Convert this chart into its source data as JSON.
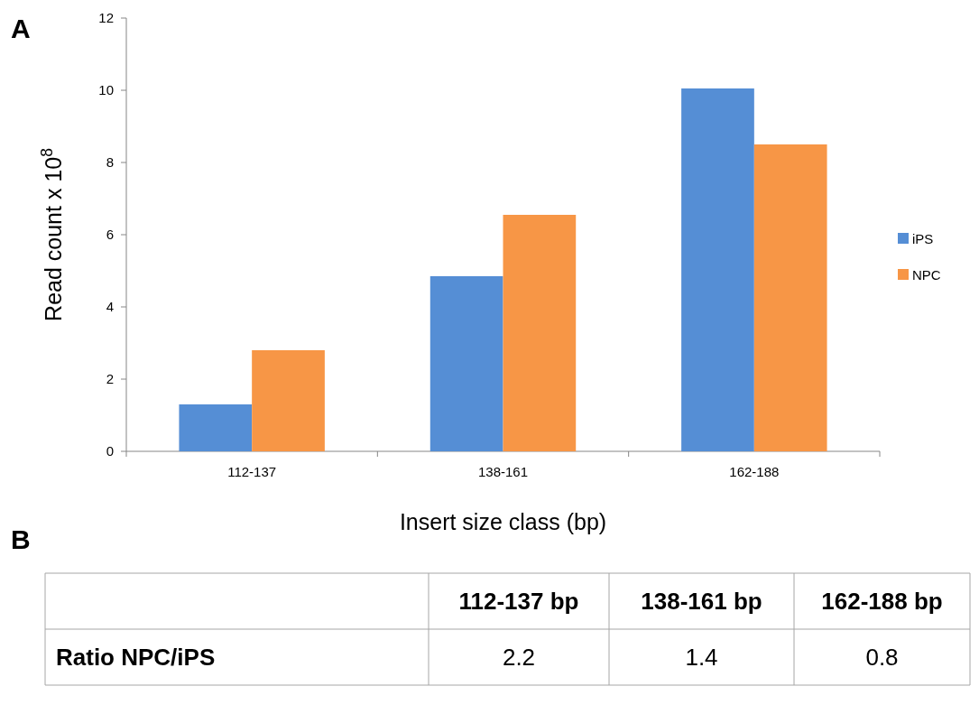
{
  "chart_data": [
    {
      "type": "bar",
      "title": "A",
      "xlabel": "Insert size class (bp)",
      "ylabel": "Read count x 10$^{8}$",
      "categories": [
        "112-137",
        "138-161",
        "162-188"
      ],
      "series": [
        {
          "name": "iPS",
          "color": "#558ed5",
          "values": [
            1.3,
            4.85,
            10.05
          ]
        },
        {
          "name": "NPC",
          "color": "#f79646",
          "values": [
            2.8,
            6.55,
            8.5
          ]
        }
      ],
      "ylim": [
        0,
        12
      ],
      "yticks": [
        0,
        2,
        4,
        6,
        8,
        10,
        12
      ],
      "grid": false,
      "legend": "right"
    },
    {
      "type": "other",
      "title": "B",
      "categories": [
        "112-137 bp",
        "138-161 bp",
        "162-188 bp"
      ],
      "series": [
        {
          "name": "Ratio NPC/iPS",
          "values": [
            2.2,
            1.4,
            0.8
          ]
        }
      ],
      "data_labels": true
    }
  ]
}
